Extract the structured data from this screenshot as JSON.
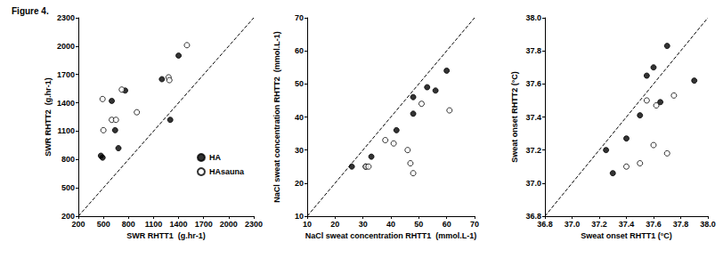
{
  "title": "Figure 4.",
  "chart_data": [
    {
      "type": "scatter",
      "xlabel": "SWR RHTT1  (g.hr-1)",
      "ylabel": "SWR RHTT2  (g.hr-1)",
      "xlim": [
        200,
        2300
      ],
      "xticks": [
        200,
        500,
        800,
        1100,
        1400,
        1700,
        2000,
        2300
      ],
      "ylim": [
        200,
        2300
      ],
      "yticks": [
        200,
        500,
        800,
        1100,
        1400,
        1700,
        2000,
        2300
      ],
      "grid": false,
      "legend": "lower right",
      "series": [
        {
          "name": "HA",
          "color": "#000000",
          "marker": "circle",
          "x": [
            470,
            490,
            600,
            640,
            680,
            760,
            1200,
            1300,
            1400
          ],
          "values": [
            840,
            820,
            1420,
            1110,
            920,
            1530,
            1650,
            1220,
            1900
          ]
        },
        {
          "name": "HAsauna",
          "color": "#000000",
          "marker": "open_circle",
          "x": [
            490,
            500,
            600,
            650,
            720,
            900,
            1280,
            1290,
            1500
          ],
          "values": [
            1440,
            1110,
            1220,
            1220,
            1540,
            1300,
            1670,
            1640,
            2010
          ]
        },
        {
          "type": "line",
          "line_style": "dashed",
          "color": "#000000",
          "x": [
            200,
            2300
          ],
          "values": [
            200,
            2300
          ]
        }
      ]
    },
    {
      "type": "scatter",
      "xlabel": "NaCl sweat concentration RHTT1  (mmol.L-1)",
      "ylabel": "NaCl sweat concentration RHTT2  (mmol.L-1)",
      "xlim": [
        10,
        70
      ],
      "xticks": [
        10,
        20,
        30,
        40,
        50,
        60,
        70
      ],
      "ylim": [
        10,
        70
      ],
      "yticks": [
        10,
        20,
        30,
        40,
        50,
        60,
        70
      ],
      "grid": false,
      "series": [
        {
          "name": "HA",
          "color": "#000000",
          "marker": "circle",
          "x": [
            26,
            31,
            33,
            42,
            48,
            48,
            53,
            56,
            60
          ],
          "values": [
            25,
            25,
            28,
            36,
            41,
            46,
            49,
            48,
            54
          ]
        },
        {
          "name": "HAsauna",
          "color": "#000000",
          "marker": "open_circle",
          "x": [
            31,
            32,
            38,
            41,
            46,
            47,
            48,
            51,
            61
          ],
          "values": [
            25,
            25,
            33,
            32,
            30,
            26,
            23,
            44,
            42
          ]
        },
        {
          "type": "line",
          "line_style": "dashed",
          "color": "#000000",
          "x": [
            10,
            70
          ],
          "values": [
            10,
            70
          ]
        }
      ]
    },
    {
      "type": "scatter",
      "xlabel": "Sweat onset RHTT1 (°C)",
      "ylabel": "Sweat onset RHTT2 (°C)",
      "xlim": [
        36.8,
        38.0
      ],
      "xticks": [
        36.8,
        {
          "value": 37,
          "label": "37.0"
        },
        37.2,
        37.4,
        37.6,
        37.8,
        {
          "value": 38,
          "label": "38.0"
        }
      ],
      "ylim": [
        36.8,
        38.0
      ],
      "yticks": [
        36.8,
        {
          "value": 37,
          "label": "37.0"
        },
        37.2,
        37.4,
        37.6,
        37.8,
        {
          "value": 38,
          "label": "38.0"
        }
      ],
      "grid": false,
      "series": [
        {
          "name": "HA",
          "color": "#000000",
          "marker": "circle",
          "x": [
            37.25,
            37.3,
            37.4,
            37.5,
            37.55,
            37.6,
            37.65,
            37.7,
            37.9
          ],
          "values": [
            37.2,
            37.06,
            37.27,
            37.41,
            37.65,
            37.7,
            37.49,
            37.83,
            37.62
          ]
        },
        {
          "name": "HAsauna",
          "color": "#000000",
          "marker": "open_circle",
          "x": [
            37.4,
            37.5,
            37.55,
            37.6,
            37.62,
            37.7,
            37.75
          ],
          "values": [
            37.1,
            37.12,
            37.5,
            37.23,
            37.47,
            37.18,
            37.53
          ]
        },
        {
          "type": "line",
          "line_style": "dashed",
          "color": "#000000",
          "x": [
            36.8,
            38.0
          ],
          "values": [
            36.8,
            38.0
          ]
        }
      ]
    }
  ]
}
